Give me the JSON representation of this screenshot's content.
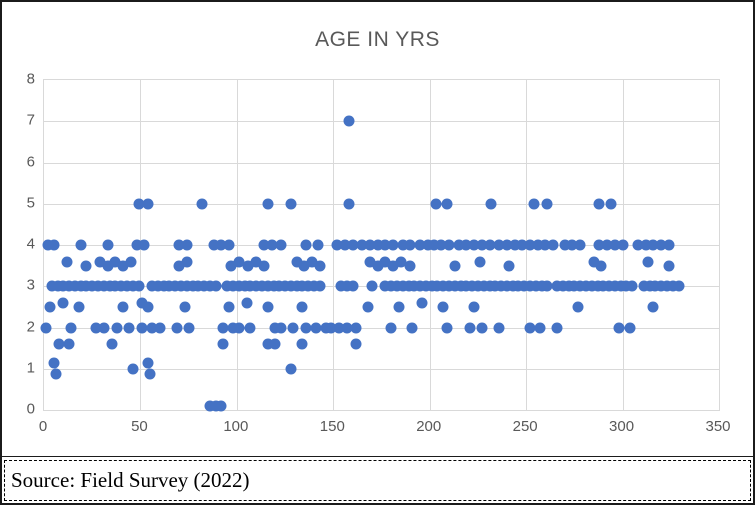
{
  "chart_data": {
    "type": "scatter",
    "title": "AGE IN YRS",
    "xlabel": "",
    "ylabel": "",
    "legend": "none",
    "grid": true,
    "point_color": "#4472C4",
    "x_axis": {
      "min": 0,
      "max": 350,
      "tick_interval": 50,
      "ticks": [
        0,
        50,
        100,
        150,
        200,
        250,
        300,
        350
      ]
    },
    "y_axis": {
      "min": 0,
      "max": 8,
      "tick_interval": 1,
      "ticks": [
        0,
        1,
        2,
        3,
        4,
        5,
        6,
        7,
        8
      ]
    },
    "points": [
      [
        158,
        7
      ],
      [
        49,
        5
      ],
      [
        54,
        5
      ],
      [
        82,
        5
      ],
      [
        116,
        5
      ],
      [
        128,
        5
      ],
      [
        158,
        5
      ],
      [
        203,
        5
      ],
      [
        209,
        5
      ],
      [
        232,
        5
      ],
      [
        254,
        5
      ],
      [
        261,
        5
      ],
      [
        288,
        5
      ],
      [
        294,
        5
      ],
      [
        2,
        4
      ],
      [
        5,
        4
      ],
      [
        19,
        4
      ],
      [
        33,
        4
      ],
      [
        48,
        4
      ],
      [
        52,
        4
      ],
      [
        70,
        4
      ],
      [
        74,
        4
      ],
      [
        88,
        4
      ],
      [
        92,
        4
      ],
      [
        96,
        4
      ],
      [
        114,
        4
      ],
      [
        118,
        4
      ],
      [
        123,
        4
      ],
      [
        136,
        4
      ],
      [
        142,
        4
      ],
      [
        152,
        4
      ],
      [
        156,
        4
      ],
      [
        160,
        4
      ],
      [
        165,
        4
      ],
      [
        169,
        4
      ],
      [
        173,
        4
      ],
      [
        177,
        4
      ],
      [
        181,
        4
      ],
      [
        186,
        4
      ],
      [
        190,
        4
      ],
      [
        195,
        4
      ],
      [
        199,
        4
      ],
      [
        202,
        4
      ],
      [
        206,
        4
      ],
      [
        210,
        4
      ],
      [
        215,
        4
      ],
      [
        219,
        4
      ],
      [
        223,
        4
      ],
      [
        227,
        4
      ],
      [
        231,
        4
      ],
      [
        236,
        4
      ],
      [
        240,
        4
      ],
      [
        244,
        4
      ],
      [
        248,
        4
      ],
      [
        252,
        4
      ],
      [
        256,
        4
      ],
      [
        260,
        4
      ],
      [
        264,
        4
      ],
      [
        270,
        4
      ],
      [
        274,
        4
      ],
      [
        278,
        4
      ],
      [
        288,
        4
      ],
      [
        292,
        4
      ],
      [
        296,
        4
      ],
      [
        300,
        4
      ],
      [
        308,
        4
      ],
      [
        312,
        4
      ],
      [
        316,
        4
      ],
      [
        320,
        4
      ],
      [
        324,
        4
      ],
      [
        12,
        3.6
      ],
      [
        29,
        3.6
      ],
      [
        37,
        3.6
      ],
      [
        45,
        3.6
      ],
      [
        74,
        3.6
      ],
      [
        101,
        3.6
      ],
      [
        110,
        3.6
      ],
      [
        131,
        3.6
      ],
      [
        139,
        3.6
      ],
      [
        169,
        3.6
      ],
      [
        177,
        3.6
      ],
      [
        185,
        3.6
      ],
      [
        226,
        3.6
      ],
      [
        285,
        3.6
      ],
      [
        313,
        3.6
      ],
      [
        22,
        3.5
      ],
      [
        33,
        3.5
      ],
      [
        41,
        3.5
      ],
      [
        70,
        3.5
      ],
      [
        97,
        3.5
      ],
      [
        106,
        3.5
      ],
      [
        114,
        3.5
      ],
      [
        135,
        3.5
      ],
      [
        143,
        3.5
      ],
      [
        173,
        3.5
      ],
      [
        181,
        3.5
      ],
      [
        190,
        3.5
      ],
      [
        213,
        3.5
      ],
      [
        241,
        3.5
      ],
      [
        289,
        3.5
      ],
      [
        324,
        3.5
      ],
      [
        4,
        3
      ],
      [
        7,
        3
      ],
      [
        10,
        3
      ],
      [
        13,
        3
      ],
      [
        16,
        3
      ],
      [
        19,
        3
      ],
      [
        22,
        3
      ],
      [
        25,
        3
      ],
      [
        28,
        3
      ],
      [
        31,
        3
      ],
      [
        34,
        3
      ],
      [
        37,
        3
      ],
      [
        40,
        3
      ],
      [
        43,
        3
      ],
      [
        46,
        3
      ],
      [
        49,
        3
      ],
      [
        56,
        3
      ],
      [
        59,
        3
      ],
      [
        62,
        3
      ],
      [
        65,
        3
      ],
      [
        68,
        3
      ],
      [
        71,
        3
      ],
      [
        74,
        3
      ],
      [
        77,
        3
      ],
      [
        80,
        3
      ],
      [
        83,
        3
      ],
      [
        86,
        3
      ],
      [
        89,
        3
      ],
      [
        95,
        3
      ],
      [
        98,
        3
      ],
      [
        101,
        3
      ],
      [
        104,
        3
      ],
      [
        107,
        3
      ],
      [
        110,
        3
      ],
      [
        113,
        3
      ],
      [
        116,
        3
      ],
      [
        119,
        3
      ],
      [
        122,
        3
      ],
      [
        125,
        3
      ],
      [
        128,
        3
      ],
      [
        131,
        3
      ],
      [
        134,
        3
      ],
      [
        137,
        3
      ],
      [
        140,
        3
      ],
      [
        143,
        3
      ],
      [
        154,
        3
      ],
      [
        157,
        3
      ],
      [
        160,
        3
      ],
      [
        170,
        3
      ],
      [
        177,
        3
      ],
      [
        180,
        3
      ],
      [
        183,
        3
      ],
      [
        186,
        3
      ],
      [
        189,
        3
      ],
      [
        192,
        3
      ],
      [
        195,
        3
      ],
      [
        198,
        3
      ],
      [
        201,
        3
      ],
      [
        204,
        3
      ],
      [
        207,
        3
      ],
      [
        210,
        3
      ],
      [
        213,
        3
      ],
      [
        216,
        3
      ],
      [
        219,
        3
      ],
      [
        222,
        3
      ],
      [
        225,
        3
      ],
      [
        228,
        3
      ],
      [
        231,
        3
      ],
      [
        234,
        3
      ],
      [
        237,
        3
      ],
      [
        240,
        3
      ],
      [
        243,
        3
      ],
      [
        246,
        3
      ],
      [
        249,
        3
      ],
      [
        252,
        3
      ],
      [
        255,
        3
      ],
      [
        258,
        3
      ],
      [
        261,
        3
      ],
      [
        266,
        3
      ],
      [
        269,
        3
      ],
      [
        272,
        3
      ],
      [
        275,
        3
      ],
      [
        278,
        3
      ],
      [
        281,
        3
      ],
      [
        284,
        3
      ],
      [
        287,
        3
      ],
      [
        290,
        3
      ],
      [
        293,
        3
      ],
      [
        296,
        3
      ],
      [
        299,
        3
      ],
      [
        302,
        3
      ],
      [
        305,
        3
      ],
      [
        311,
        3
      ],
      [
        314,
        3
      ],
      [
        317,
        3
      ],
      [
        320,
        3
      ],
      [
        323,
        3
      ],
      [
        326,
        3
      ],
      [
        329,
        3
      ],
      [
        10,
        2.6
      ],
      [
        51,
        2.6
      ],
      [
        105,
        2.6
      ],
      [
        196,
        2.6
      ],
      [
        3,
        2.5
      ],
      [
        18,
        2.5
      ],
      [
        41,
        2.5
      ],
      [
        54,
        2.5
      ],
      [
        73,
        2.5
      ],
      [
        96,
        2.5
      ],
      [
        116,
        2.5
      ],
      [
        134,
        2.5
      ],
      [
        168,
        2.5
      ],
      [
        184,
        2.5
      ],
      [
        207,
        2.5
      ],
      [
        223,
        2.5
      ],
      [
        277,
        2.5
      ],
      [
        316,
        2.5
      ],
      [
        1,
        2
      ],
      [
        14,
        2
      ],
      [
        27,
        2
      ],
      [
        31,
        2
      ],
      [
        38,
        2
      ],
      [
        44,
        2
      ],
      [
        51,
        2
      ],
      [
        56,
        2
      ],
      [
        60,
        2
      ],
      [
        69,
        2
      ],
      [
        75,
        2
      ],
      [
        93,
        2
      ],
      [
        98,
        2
      ],
      [
        101,
        2
      ],
      [
        107,
        2
      ],
      [
        120,
        2
      ],
      [
        123,
        2
      ],
      [
        129,
        2
      ],
      [
        136,
        2
      ],
      [
        141,
        2
      ],
      [
        146,
        2
      ],
      [
        149,
        2
      ],
      [
        153,
        2
      ],
      [
        157,
        2
      ],
      [
        162,
        2
      ],
      [
        180,
        2
      ],
      [
        191,
        2
      ],
      [
        209,
        2
      ],
      [
        221,
        2
      ],
      [
        227,
        2
      ],
      [
        236,
        2
      ],
      [
        252,
        2
      ],
      [
        257,
        2
      ],
      [
        266,
        2
      ],
      [
        298,
        2
      ],
      [
        304,
        2
      ],
      [
        8,
        1.6
      ],
      [
        13,
        1.6
      ],
      [
        35,
        1.6
      ],
      [
        93,
        1.6
      ],
      [
        116,
        1.6
      ],
      [
        120,
        1.6
      ],
      [
        134,
        1.6
      ],
      [
        162,
        1.6
      ],
      [
        5,
        1.15
      ],
      [
        54,
        1.15
      ],
      [
        46,
        1
      ],
      [
        128,
        1
      ],
      [
        6,
        0.88
      ],
      [
        55,
        0.88
      ],
      [
        86,
        0.1
      ],
      [
        89,
        0.1
      ],
      [
        92,
        0.1
      ]
    ]
  },
  "source": {
    "text": "Source: Field Survey (2022)"
  },
  "colors": {
    "accent": "#4472C4",
    "gridline": "#D9D9D9",
    "axis_text": "#595959",
    "title_text": "#595959",
    "border": "#000000"
  }
}
